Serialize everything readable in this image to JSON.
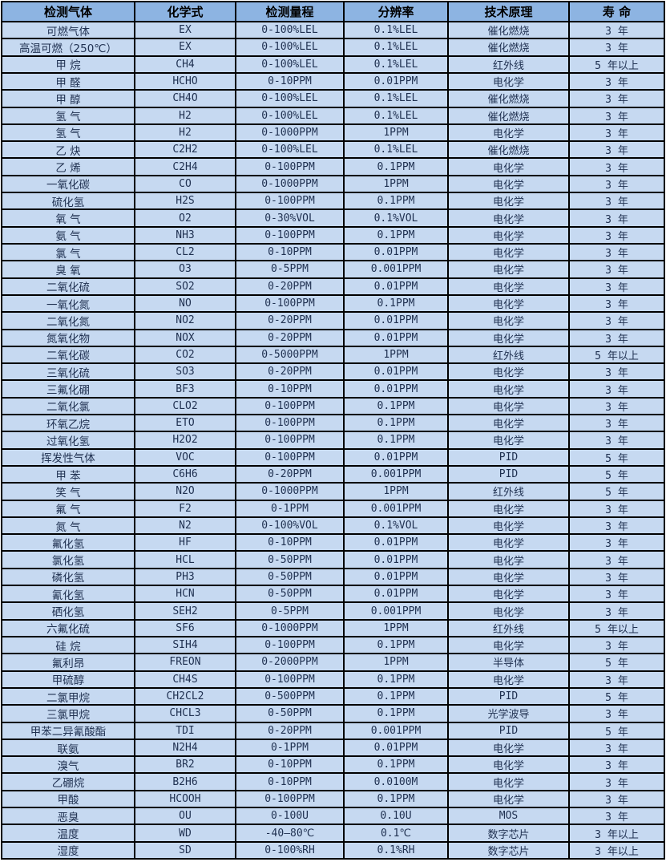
{
  "table": {
    "columns": [
      "检测气体",
      "化学式",
      "检测量程",
      "分辨率",
      "技术原理",
      "寿 命"
    ],
    "column_keys": [
      "gas-name",
      "formula",
      "range",
      "resolution",
      "principle",
      "lifespan"
    ],
    "colors": {
      "header_bg": "#8db4e2",
      "row_bg": "#c6d9f1",
      "grid": "#000000",
      "header_text": "#000000",
      "cell_text": "#1f3050"
    },
    "rows": [
      [
        "可燃气体",
        "EX",
        "0-100%LEL",
        "0.1%LEL",
        "催化燃烧",
        "3 年"
      ],
      [
        "高温可燃（250℃）",
        "EX",
        "0-100%LEL",
        "0.1%LEL",
        "催化燃烧",
        "3 年"
      ],
      [
        "甲 烷",
        "CH4",
        "0-100%LEL",
        "0.1%LEL",
        "红外线",
        "5 年以上"
      ],
      [
        "甲 醛",
        "HCHO",
        "0-10PPM",
        "0.01PPM",
        "电化学",
        "3 年"
      ],
      [
        "甲 醇",
        "CH4O",
        "0-100%LEL",
        "0.1%LEL",
        "催化燃烧",
        "3 年"
      ],
      [
        "氢 气",
        "H2",
        "0-100%LEL",
        "0.1%LEL",
        "催化燃烧",
        "3 年"
      ],
      [
        "氢 气",
        "H2",
        "0-1000PPM",
        "1PPM",
        "电化学",
        "3 年"
      ],
      [
        "乙 炔",
        "C2H2",
        "0-100%LEL",
        "0.1%LEL",
        "催化燃烧",
        "3 年"
      ],
      [
        "乙 烯",
        "C2H4",
        "0-100PPM",
        "0.1PPM",
        "电化学",
        "3 年"
      ],
      [
        "一氧化碳",
        "CO",
        "0-1000PPM",
        "1PPM",
        "电化学",
        "3 年"
      ],
      [
        "硫化氢",
        "H2S",
        "0-100PPM",
        "0.1PPM",
        "电化学",
        "3 年"
      ],
      [
        "氧 气",
        "O2",
        "0-30%VOL",
        "0.1%VOL",
        "电化学",
        "3 年"
      ],
      [
        "氨 气",
        "NH3",
        "0-100PPM",
        "0.1PPM",
        "电化学",
        "3 年"
      ],
      [
        "氯 气",
        "CL2",
        "0-10PPM",
        "0.01PPM",
        "电化学",
        "3 年"
      ],
      [
        "臭 氧",
        "O3",
        "0-5PPM",
        "0.001PPM",
        "电化学",
        "3 年"
      ],
      [
        "二氧化硫",
        "SO2",
        "0-20PPM",
        "0.01PPM",
        "电化学",
        "3 年"
      ],
      [
        "一氧化氮",
        "NO",
        "0-100PPM",
        "0.1PPM",
        "电化学",
        "3 年"
      ],
      [
        "二氧化氮",
        "NO2",
        "0-20PPM",
        "0.01PPM",
        "电化学",
        "3 年"
      ],
      [
        "氮氧化物",
        "NOX",
        "0-20PPM",
        "0.01PPM",
        "电化学",
        "3 年"
      ],
      [
        "二氧化碳",
        "CO2",
        "0-5000PPM",
        "1PPM",
        "红外线",
        "5 年以上"
      ],
      [
        "三氧化硫",
        "SO3",
        "0-20PPM",
        "0.01PPM",
        "电化学",
        "3 年"
      ],
      [
        "三氟化硼",
        "BF3",
        "0-10PPM",
        "0.01PPM",
        "电化学",
        "3 年"
      ],
      [
        "二氧化氯",
        "CLO2",
        "0-100PPM",
        "0.1PPM",
        "电化学",
        "3 年"
      ],
      [
        "环氧乙烷",
        "ETO",
        "0-100PPM",
        "0.1PPM",
        "电化学",
        "3 年"
      ],
      [
        "过氧化氢",
        "H2O2",
        "0-100PPM",
        "0.1PPM",
        "电化学",
        "3 年"
      ],
      [
        "挥发性气体",
        "VOC",
        "0-100PPM",
        "0.01PPM",
        "PID",
        "5 年"
      ],
      [
        "甲 苯",
        "C6H6",
        "0-20PPM",
        "0.001PPM",
        "PID",
        "5 年"
      ],
      [
        "笑 气",
        "N2O",
        "0-1000PPM",
        "1PPM",
        "红外线",
        "5 年"
      ],
      [
        "氟 气",
        "F2",
        "0-1PPM",
        "0.001PPM",
        "电化学",
        "3 年"
      ],
      [
        "氮 气",
        "N2",
        "0-100%VOL",
        "0.1%VOL",
        "电化学",
        "3 年"
      ],
      [
        "氟化氢",
        "HF",
        "0-10PPM",
        "0.01PPM",
        "电化学",
        "3 年"
      ],
      [
        "氯化氢",
        "HCL",
        "0-50PPM",
        "0.01PPM",
        "电化学",
        "3 年"
      ],
      [
        "磷化氢",
        "PH3",
        "0-50PPM",
        "0.01PPM",
        "电化学",
        "3 年"
      ],
      [
        "氰化氢",
        "HCN",
        "0-50PPM",
        "0.01PPM",
        "电化学",
        "3 年"
      ],
      [
        "硒化氢",
        "SEH2",
        "0-5PPM",
        "0.001PPM",
        "电化学",
        "3 年"
      ],
      [
        "六氟化硫",
        "SF6",
        "0-1000PPM",
        "1PPM",
        "红外线",
        "5 年以上"
      ],
      [
        "硅 烷",
        "SIH4",
        "0-100PPM",
        "0.1PPM",
        "电化学",
        "3 年"
      ],
      [
        "氟利昂",
        "FREON",
        "0-2000PPM",
        "1PPM",
        "半导体",
        "5 年"
      ],
      [
        "甲硫醇",
        "CH4S",
        "0-100PPM",
        "0.1PPM",
        "电化学",
        "3 年"
      ],
      [
        "二氯甲烷",
        "CH2CL2",
        "0-500PPM",
        "0.1PPM",
        "PID",
        "5 年"
      ],
      [
        "三氯甲烷",
        "CHCL3",
        "0-50PPM",
        "0.1PPM",
        "光学波导",
        "3 年"
      ],
      [
        "甲苯二异氰酸酯",
        "TDI",
        "0-20PPM",
        "0.001PPM",
        "PID",
        "5 年"
      ],
      [
        "联氨",
        "N2H4",
        "0-1PPM",
        "0.01PPM",
        "电化学",
        "3 年"
      ],
      [
        "溴气",
        "BR2",
        "0-10PPM",
        "0.1PPM",
        "电化学",
        "3 年"
      ],
      [
        "乙硼烷",
        "B2H6",
        "0-10PPM",
        "0.0100M",
        "电化学",
        "3 年"
      ],
      [
        "甲酸",
        "HCOOH",
        "0-100PPM",
        "0.1PPM",
        "电化学",
        "3 年"
      ],
      [
        "恶臭",
        "OU",
        "0-100U",
        "0.10U",
        "MOS",
        "3 年"
      ],
      [
        "温度",
        "WD",
        "-40—80℃",
        "0.1℃",
        "数字芯片",
        "3 年以上"
      ],
      [
        "湿度",
        "SD",
        "0-100%RH",
        "0.1%RH",
        "数字芯片",
        "3 年以上"
      ]
    ]
  }
}
